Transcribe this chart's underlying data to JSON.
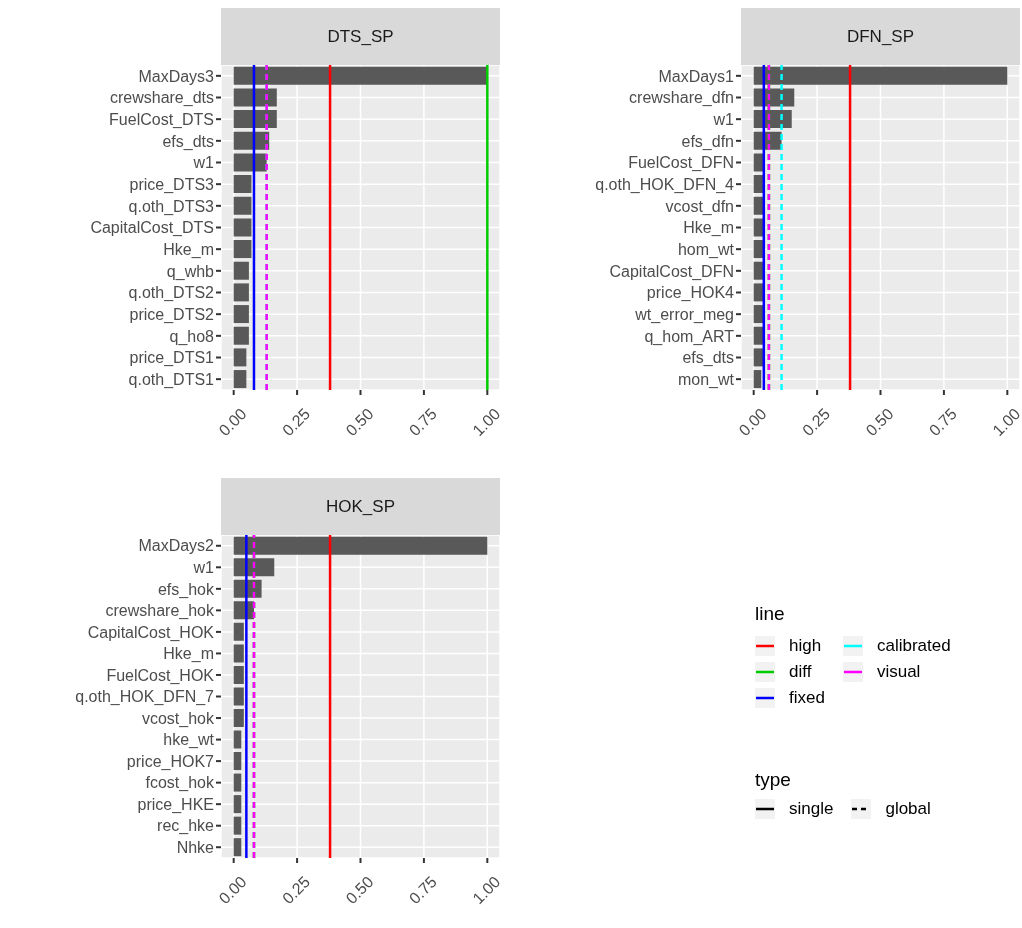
{
  "chart_data": [
    {
      "type": "bar",
      "orientation": "horizontal",
      "title": "DTS_SP",
      "categories": [
        "MaxDays3",
        "crewshare_dts",
        "FuelCost_DTS ",
        "efs_dts",
        "w1",
        "price_DTS3",
        "q.oth_DTS3",
        "CapitalCost_DTS",
        "Hke_m",
        "q_whb",
        "q.oth_DTS2",
        "price_DTS2",
        "q_ho8",
        "price_DTS1",
        "q.oth_DTS1"
      ],
      "values": [
        1,
        0.17,
        0.17,
        0.14,
        0.13,
        0.07,
        0.07,
        0.07,
        0.07,
        0.06,
        0.06,
        0.06,
        0.06,
        0.05,
        0.05
      ],
      "color": "#595959",
      "xlim": [
        -0.05,
        1.05
      ],
      "xticks": [
        {
          "value": 0,
          "label": "0.00"
        },
        {
          "value": 0.25,
          "label": "0.25"
        },
        {
          "value": 0.5,
          "label": "0.50"
        },
        {
          "value": 0.75,
          "label": "0.75"
        },
        {
          "value": 1,
          "label": "1.00"
        }
      ],
      "grid": true,
      "legend": "bottom right",
      "legend_title": "line",
      "annotations": [
        "type",
        "single",
        "global"
      ],
      "ref_lines": [
        {
          "axis": "x",
          "value": 0.38,
          "label": "high",
          "color": "#ff0000",
          "line_style": "solid"
        },
        {
          "axis": "x",
          "value": 1,
          "label": "diff",
          "color": "#00cd00",
          "line_style": "solid"
        },
        {
          "axis": "x",
          "value": 0.08,
          "label": "fixed",
          "color": "#0000ff",
          "line_style": "solid"
        },
        {
          "axis": "x",
          "value": 0.13,
          "label": "calibrated",
          "color": "#00ffff",
          "line_style": "dashed"
        },
        {
          "axis": "x",
          "value": 0.13,
          "label": "visual",
          "color": "#ff00ff",
          "line_style": "dashed"
        }
      ]
    },
    {
      "type": "bar",
      "orientation": "horizontal",
      "title": "DFN_SP",
      "categories": [
        "MaxDays1",
        "crewshare_dfn",
        "w1",
        "efs_dfn",
        "FuelCost_DFN",
        "q.oth_HOK_DFN_4",
        "vcost_dfn",
        "Hke_m",
        "hom_wt",
        "CapitalCost_DFN",
        "price_HOK4",
        "wt_error_meg",
        "q_hom_ART",
        "efs_dts",
        "mon_wt"
      ],
      "values": [
        1,
        0.16,
        0.15,
        0.11,
        0.04,
        0.04,
        0.04,
        0.04,
        0.04,
        0.04,
        0.04,
        0.04,
        0.04,
        0.04,
        0.03
      ],
      "color": "#595959",
      "xlim": [
        -0.05,
        1.05
      ],
      "xticks": [
        {
          "value": 0,
          "label": "0.00"
        },
        {
          "value": 0.25,
          "label": "0.25"
        },
        {
          "value": 0.5,
          "label": "0.50"
        },
        {
          "value": 0.75,
          "label": "0.75"
        },
        {
          "value": 1,
          "label": "1.00"
        }
      ],
      "grid": true,
      "ref_lines": [
        {
          "axis": "x",
          "value": 0.38,
          "color": "#ff0000",
          "line_style": "solid"
        },
        {
          "axis": "x",
          "value": 0.06,
          "color": "#00cd00",
          "line_style": "dashed"
        },
        {
          "axis": "x",
          "value": 0.04,
          "color": "#0000ff",
          "line_style": "solid"
        },
        {
          "axis": "x",
          "value": 0.11,
          "color": "#00ffff",
          "line_style": "dashed"
        },
        {
          "axis": "x",
          "value": 0.06,
          "color": "#ff00ff",
          "line_style": "dashed"
        }
      ]
    },
    {
      "type": "bar",
      "orientation": "horizontal",
      "title": "HOK_SP",
      "categories": [
        "MaxDays2",
        "w1",
        "efs_hok",
        "crewshare_hok",
        "CapitalCost_HOK",
        "Hke_m",
        "FuelCost_HOK",
        "q.oth_HOK_DFN_7",
        "vcost_hok",
        "hke_wt",
        "price_HOK7",
        "fcost_hok",
        "price_HKE",
        "rec_hke",
        "Nhke"
      ],
      "values": [
        1,
        0.16,
        0.11,
        0.08,
        0.04,
        0.04,
        0.04,
        0.04,
        0.04,
        0.03,
        0.03,
        0.03,
        0.03,
        0.03,
        0.03
      ],
      "color": "#595959",
      "xlim": [
        -0.05,
        1.05
      ],
      "xticks": [
        {
          "value": 0,
          "label": "0.00"
        },
        {
          "value": 0.25,
          "label": "0.25"
        },
        {
          "value": 0.5,
          "label": "0.50"
        },
        {
          "value": 0.75,
          "label": "0.75"
        },
        {
          "value": 1,
          "label": "1.00"
        }
      ],
      "grid": true,
      "ref_lines": [
        {
          "axis": "x",
          "value": 0.38,
          "color": "#ff0000",
          "line_style": "solid"
        },
        {
          "axis": "x",
          "value": 0.08,
          "color": "#00cd00",
          "line_style": "dashed"
        },
        {
          "axis": "x",
          "value": 0.05,
          "color": "#0000ff",
          "line_style": "solid"
        },
        {
          "axis": "x",
          "value": 0.08,
          "color": "#ff00ff",
          "line_style": "dashed"
        }
      ]
    }
  ]
}
